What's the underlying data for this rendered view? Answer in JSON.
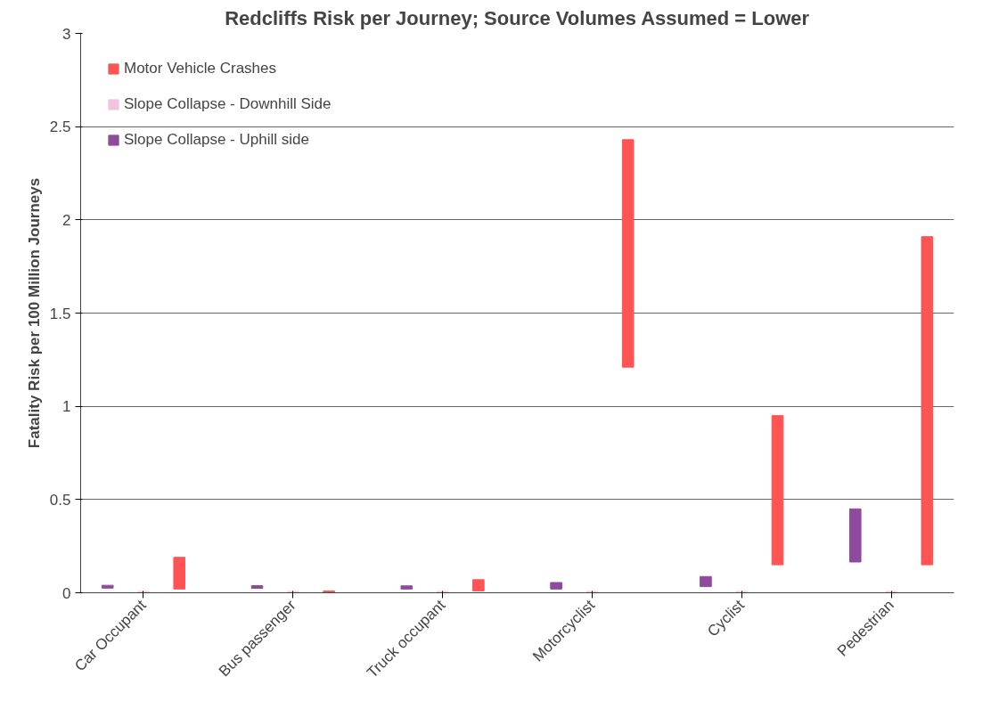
{
  "chart_data": {
    "type": "bar",
    "title": "Redcliffs Risk per Journey; Source Volumes Assumed = Lower",
    "ylabel": "Fatality Risk per 100 Million Journeys",
    "categories": [
      "Car Occupant",
      "Bus passenger",
      "Truck occupant",
      "Motorcyclist",
      "Cyclist",
      "Pedestrian"
    ],
    "series": [
      {
        "name": "Motor Vehicle Crashes",
        "color": "#ff5454",
        "base": [
          0.02,
          0.0,
          0.01,
          1.21,
          0.15,
          0.15
        ],
        "values": [
          0.17,
          0.01,
          0.06,
          1.22,
          0.8,
          1.76
        ]
      },
      {
        "name": "Slope Collapse - Downhill Side",
        "color": "#f2c4e0",
        "base": [
          0.003,
          0.003,
          0.003,
          0.003,
          0.003,
          0.003
        ],
        "values": [
          0.004,
          0.004,
          0.004,
          0.004,
          0.004,
          0.004
        ]
      },
      {
        "name": "Slope Collapse - Uphill side",
        "color": "#8e4a9c",
        "base": [
          0.025,
          0.024,
          0.02,
          0.02,
          0.033,
          0.165
        ],
        "values": [
          0.015,
          0.014,
          0.017,
          0.035,
          0.054,
          0.285
        ]
      }
    ],
    "ylim": [
      0,
      3
    ],
    "yticks": [
      0,
      0.5,
      1,
      1.5,
      2,
      2.5,
      3
    ],
    "grid": "y",
    "legend": "top left"
  }
}
